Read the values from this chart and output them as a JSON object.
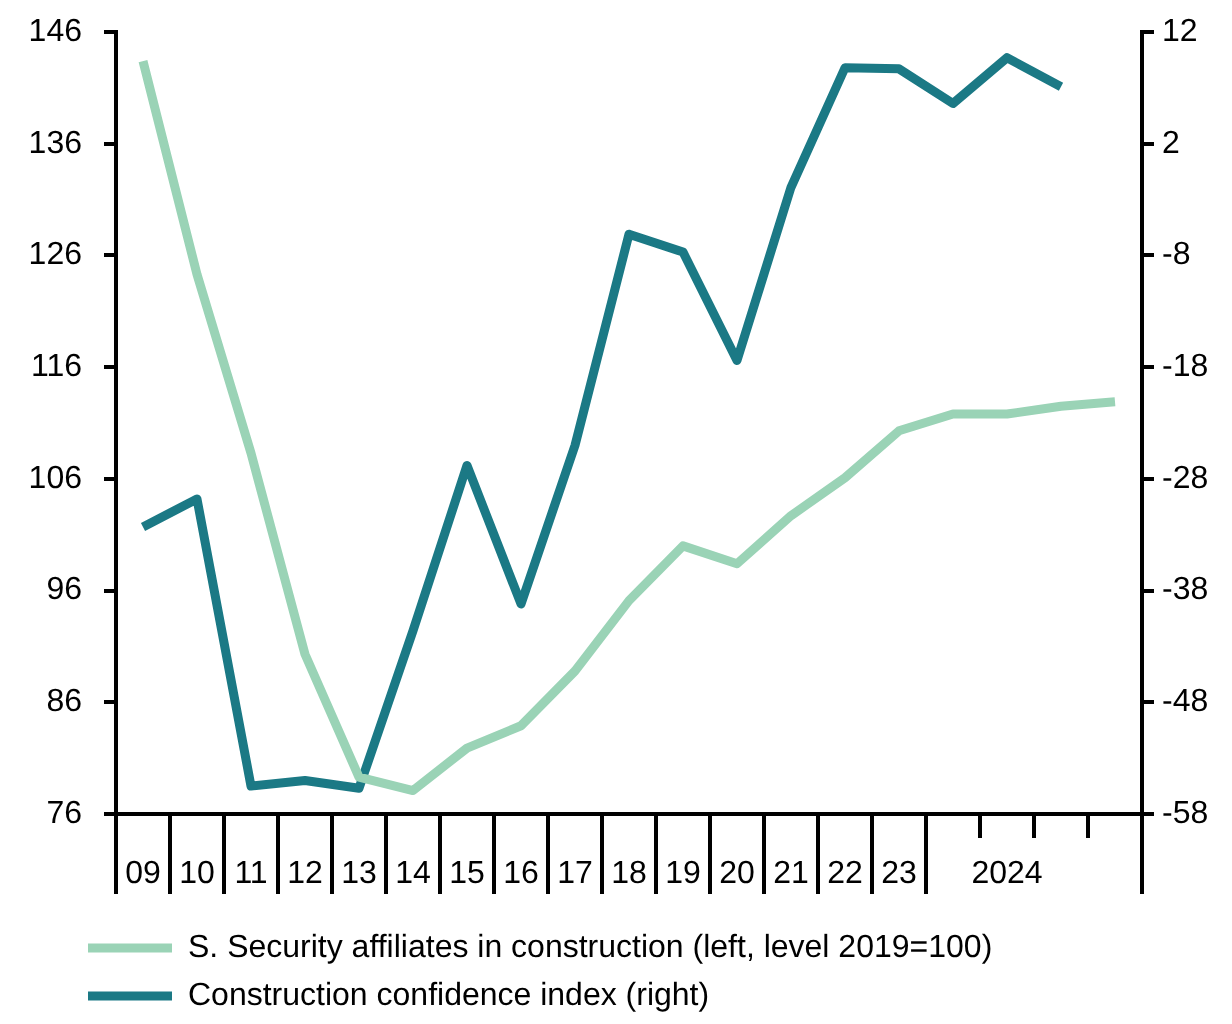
{
  "chart_data": {
    "type": "line",
    "categories": [
      "09",
      "10",
      "11",
      "12",
      "13",
      "14",
      "15",
      "16",
      "17",
      "18",
      "19",
      "20",
      "21",
      "22",
      "23",
      null,
      "2024",
      null,
      null
    ],
    "series": [
      {
        "name": "S. Security affiliates in construction (left, level 2019=100)",
        "color": "#9ad3b6",
        "values": [
          143.4,
          124.3,
          108.3,
          90.3,
          79.3,
          78.1,
          81.9,
          83.9,
          88.8,
          95.1,
          100.0,
          98.4,
          102.7,
          106.1,
          110.3,
          111.8,
          111.8,
          112.5,
          112.9
        ]
      },
      {
        "name": "Construction confidence index (right)",
        "color": "#1b7985",
        "axis": "y2",
        "values": [
          -32.3,
          -29.8,
          -55.5,
          -55.0,
          -55.7,
          -41.6,
          -26.8,
          -39.2,
          -25.0,
          -6.1,
          -7.7,
          -17.4,
          -1.9,
          8.8,
          8.7,
          5.6,
          9.7,
          7.1,
          null
        ]
      }
    ],
    "ylim": [
      76,
      146
    ],
    "yticks": [
      76,
      86,
      96,
      106,
      116,
      126,
      136,
      146
    ],
    "y2lim": [
      -58,
      12
    ],
    "y2ticks": [
      -58,
      -48,
      -38,
      -28,
      -18,
      -8,
      2,
      12
    ],
    "legend": "bottom"
  }
}
